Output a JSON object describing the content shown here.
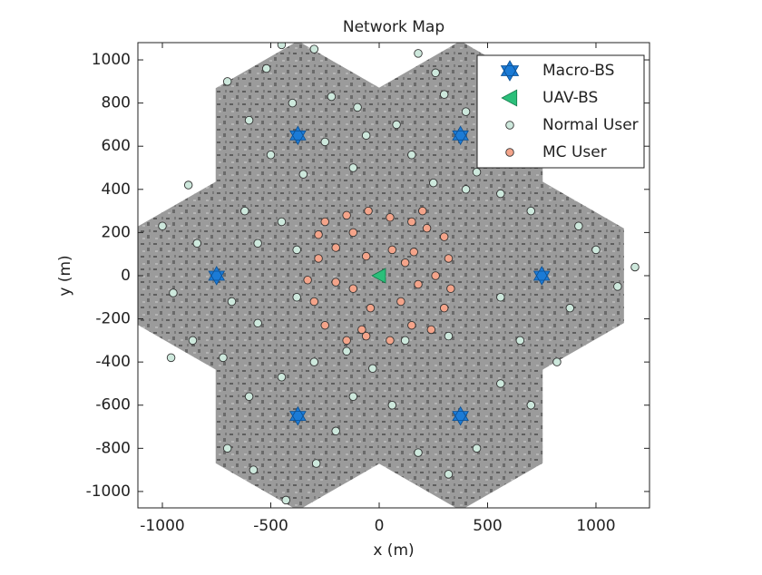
{
  "chart_data": {
    "type": "scatter",
    "title": "Network Map",
    "x_label": "x (m)",
    "y_label": "y (m)",
    "xlim": [
      -1113,
      1247
    ],
    "ylim": [
      -1076,
      1080
    ],
    "xticks": [
      -1000,
      -500,
      0,
      500,
      1000
    ],
    "yticks": [
      -1000,
      -800,
      -600,
      -400,
      -200,
      0,
      200,
      400,
      600,
      800,
      1000
    ],
    "legend": "northeast",
    "series": [
      {
        "name": "Macro-BS",
        "marker": "hexagram",
        "color": "#1b7bd6",
        "x": [
          -375,
          375,
          -750,
          750,
          -375,
          375
        ],
        "y": [
          650,
          650,
          0,
          0,
          -650,
          -650
        ]
      },
      {
        "name": "UAV-BS",
        "marker": "triangle-left",
        "color": "#2bbf7a",
        "x": [
          0
        ],
        "y": [
          0
        ]
      },
      {
        "name": "Normal User",
        "marker": "circle",
        "color": "#cde8dc",
        "x": [
          -700,
          -520,
          -450,
          -300,
          -220,
          -400,
          -600,
          -250,
          -500,
          -350,
          -100,
          -60,
          -120,
          180,
          260,
          300,
          400,
          560,
          620,
          520,
          650,
          450,
          150,
          80,
          -880,
          -1000,
          -840,
          -950,
          -680,
          -860,
          -960,
          -720,
          -560,
          -560,
          -620,
          -450,
          -380,
          -300,
          -450,
          -600,
          -700,
          -580,
          -430,
          -290,
          -200,
          -120,
          -30,
          60,
          180,
          320,
          450,
          560,
          700,
          820,
          650,
          560,
          880,
          1000,
          1100,
          1180,
          920,
          700,
          560,
          820,
          400,
          120,
          320,
          -380,
          -150,
          250
        ],
        "y": [
          900,
          960,
          1070,
          1050,
          830,
          800,
          720,
          620,
          560,
          470,
          780,
          650,
          500,
          1030,
          940,
          840,
          760,
          980,
          850,
          590,
          520,
          480,
          560,
          700,
          420,
          230,
          150,
          -80,
          -120,
          -300,
          -380,
          -380,
          -220,
          150,
          300,
          250,
          -100,
          -400,
          -470,
          -560,
          -800,
          -900,
          -1040,
          -870,
          -720,
          -560,
          -430,
          -600,
          -820,
          -920,
          -800,
          -500,
          -600,
          -400,
          -300,
          -100,
          -150,
          120,
          -50,
          40,
          230,
          300,
          380,
          560,
          400,
          -300,
          -280,
          120,
          -350,
          430
        ]
      },
      {
        "name": "MC User",
        "marker": "circle",
        "color": "#f4a48a",
        "x": [
          -250,
          -150,
          -50,
          50,
          150,
          220,
          300,
          320,
          260,
          330,
          300,
          240,
          150,
          50,
          -60,
          -150,
          -250,
          -300,
          -330,
          -280,
          -200,
          -120,
          -60,
          60,
          120,
          -120,
          -40,
          100,
          180,
          -200,
          -280,
          200,
          -80,
          160
        ],
        "y": [
          250,
          280,
          300,
          270,
          250,
          220,
          180,
          80,
          0,
          -60,
          -150,
          -250,
          -230,
          -300,
          -280,
          -300,
          -230,
          -120,
          -20,
          80,
          130,
          200,
          90,
          120,
          60,
          -60,
          -150,
          -120,
          -40,
          -30,
          190,
          300,
          -250,
          110
        ]
      }
    ]
  }
}
